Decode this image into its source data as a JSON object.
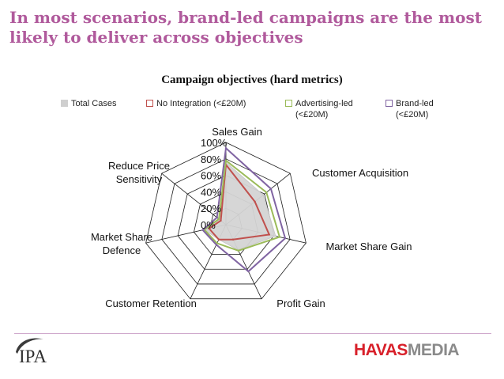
{
  "slide": {
    "title": "In most scenarios, brand-led campaigns are the most likely to deliver across objectives"
  },
  "logos": {
    "ipa_text": "IPA",
    "havas_part1": "HAVAS",
    "havas_part2": "MEDIA"
  },
  "colors": {
    "title": "#b05a9c",
    "total_cases": "#c8c8c8",
    "no_integration": "#c0504d",
    "advertising_led": "#9bbb59",
    "brand_led": "#8064a2"
  },
  "chart_data": {
    "type": "radar",
    "title": "Campaign objectives (hard metrics)",
    "categories": [
      "Sales Gain",
      "Customer Acquisition",
      "Market Share Gain",
      "Profit Gain",
      "Customer Retention",
      "Market Share Defence",
      "Reduce Price Sensitivity"
    ],
    "radial_ticks": [
      "100%",
      "80%",
      "60%",
      "40%",
      "20%",
      "0%"
    ],
    "rlim": [
      0,
      100
    ],
    "grid": true,
    "legend_position": "top",
    "series": [
      {
        "name": "Total Cases",
        "values": [
          76,
          58,
          62,
          34,
          20,
          27,
          10
        ],
        "color": "#c8c8c8",
        "fill": true
      },
      {
        "name": "No Integration (<£20M)",
        "values": [
          73,
          45,
          54,
          20,
          20,
          21,
          8
        ],
        "color": "#c0504d",
        "fill": false
      },
      {
        "name": "Advertising-led (<£20M)",
        "values": [
          78,
          63,
          67,
          35,
          25,
          27,
          11
        ],
        "color": "#9bbb59",
        "fill": false
      },
      {
        "name": "Brand-led (<£20M)",
        "values": [
          93,
          70,
          74,
          63,
          27,
          29,
          14
        ],
        "color": "#8064a2",
        "fill": false
      }
    ]
  }
}
